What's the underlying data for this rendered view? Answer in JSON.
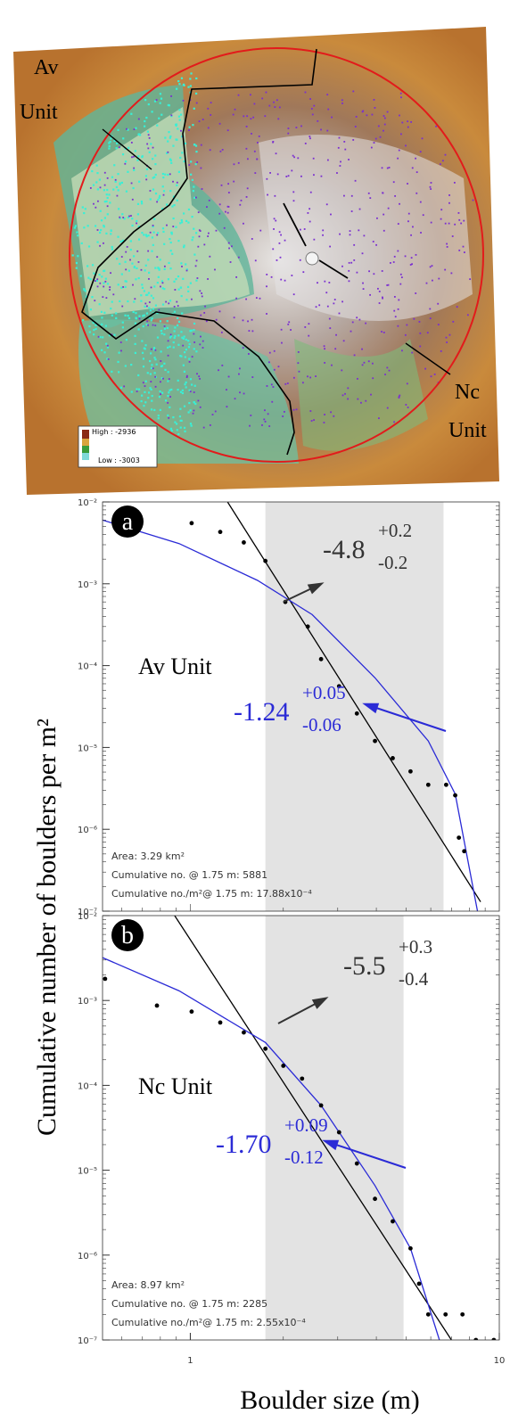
{
  "map": {
    "av_label": [
      "Av",
      "Unit"
    ],
    "nc_label": [
      "Nc",
      "Unit"
    ],
    "legend_high": "High : -2936",
    "legend_low": "Low : -3003"
  },
  "chart_data": [
    {
      "type": "scatter",
      "panel": "a",
      "xscale": "log",
      "yscale": "log",
      "ylabel": "Cumulative number of boulders per m²",
      "xlim": [
        0.52,
        10
      ],
      "ylim": [
        1e-07,
        0.01
      ],
      "yticks": [
        {
          "value": 0.01,
          "label": "10⁻²"
        },
        {
          "value": 0.001,
          "label": "10⁻³"
        },
        {
          "value": 0.0001,
          "label": "10⁻⁴"
        },
        {
          "value": 1e-05,
          "label": "10⁻⁵"
        },
        {
          "value": 1e-06,
          "label": "10⁻⁶"
        },
        {
          "value": 1e-07,
          "label": "10⁻⁷"
        }
      ],
      "band": [
        1.75,
        6.6
      ],
      "band_color": "#e3e3e3",
      "unit_label": "Av Unit",
      "notes": [
        "Area: 3.29 km²",
        "Cumulative no. @ 1.75 m: 5881",
        "Cumulative no./m²@ 1.75 m: 17.88x10⁻⁴"
      ],
      "annotations": [
        {
          "text": "-4.8",
          "sup": "+0.2",
          "sub": "-0.2",
          "color": "#333333"
        },
        {
          "text": "-1.24",
          "sup": "+0.05",
          "sub": "-0.06",
          "color": "#2b2bd6"
        }
      ],
      "points": {
        "color": "#000000",
        "x": [
          1.01,
          1.25,
          1.49,
          1.75,
          2.03,
          2.4,
          2.65,
          3.03,
          3.46,
          3.96,
          4.52,
          5.16,
          5.89,
          6.73,
          7.2,
          7.4,
          7.7
        ],
        "y": [
          0.0055,
          0.0043,
          0.0032,
          0.0019,
          0.0006,
          0.0003,
          0.00012,
          5.6e-05,
          2.6e-05,
          1.2e-05,
          7.4e-06,
          5.1e-06,
          3.5e-06,
          3.5e-06,
          2.6e-06,
          7.9e-07,
          5.4e-07
        ]
      },
      "fits": [
        {
          "color": "#000000",
          "x": [
            1.32,
            8.7
          ],
          "y": [
            0.01,
            1.3e-07
          ]
        },
        {
          "color": "#2b2bd6",
          "x": [
            0.52,
            0.92,
            1.65,
            2.48,
            3.96,
            5.89,
            7.2,
            8.5
          ],
          "y": [
            0.006,
            0.0031,
            0.0011,
            0.00042,
            7.1e-05,
            1.2e-05,
            2.7e-06,
            1e-07
          ]
        }
      ]
    },
    {
      "type": "scatter",
      "panel": "b",
      "xscale": "log",
      "yscale": "log",
      "xlabel": "Boulder size (m)",
      "xlim": [
        0.52,
        10
      ],
      "ylim": [
        1e-07,
        0.01
      ],
      "xticks": [
        1,
        10
      ],
      "yticks": [
        {
          "value": 0.01,
          "label": "10⁻²"
        },
        {
          "value": 0.001,
          "label": "10⁻³"
        },
        {
          "value": 0.0001,
          "label": "10⁻⁴"
        },
        {
          "value": 1e-05,
          "label": "10⁻⁵"
        },
        {
          "value": 1e-06,
          "label": "10⁻⁶"
        },
        {
          "value": 1e-07,
          "label": "10⁻⁷"
        }
      ],
      "band": [
        1.75,
        4.9
      ],
      "band_color": "#e3e3e3",
      "unit_label": "Nc Unit",
      "notes": [
        "Area: 8.97 km²",
        "Cumulative no. @ 1.75 m: 2285",
        "Cumulative no./m²@ 1.75 m: 2.55x10⁻⁴"
      ],
      "annotations": [
        {
          "text": "-5.5",
          "sup": "+0.3",
          "sub": "-0.4",
          "color": "#333333"
        },
        {
          "text": "-1.70",
          "sup": "+0.09",
          "sub": "-0.12",
          "color": "#2b2bd6"
        }
      ],
      "points": {
        "color": "#000000",
        "x": [
          0.53,
          0.78,
          1.01,
          1.25,
          1.49,
          1.75,
          2.0,
          2.3,
          2.65,
          3.03,
          3.46,
          3.96,
          4.52,
          5.16,
          5.5,
          5.89,
          6.7,
          7.6,
          8.4,
          9.6
        ],
        "y": [
          0.0018,
          0.00087,
          0.00074,
          0.00055,
          0.00042,
          0.00027,
          0.00017,
          0.00012,
          5.8e-05,
          2.8e-05,
          1.2e-05,
          4.6e-06,
          2.5e-06,
          1.2e-06,
          4.6e-07,
          2e-07,
          2e-07,
          2e-07,
          1e-07,
          1e-07
        ]
      },
      "fits": [
        {
          "color": "#000000",
          "x": [
            0.89,
            7.0
          ],
          "y": [
            0.01,
            1e-07
          ]
        },
        {
          "color": "#2b2bd6",
          "x": [
            0.52,
            0.92,
            1.75,
            2.65,
            3.96,
            5.16,
            6.4
          ],
          "y": [
            0.0032,
            0.0013,
            0.00032,
            5.8e-05,
            6.6e-06,
            1.2e-06,
            1e-07
          ]
        }
      ]
    }
  ]
}
